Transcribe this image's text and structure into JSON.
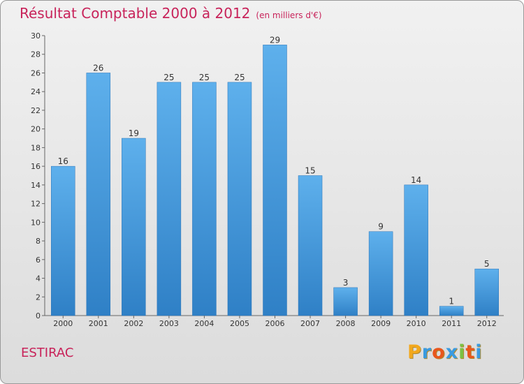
{
  "header": {
    "title": "Résultat Comptable 2000 à 2012",
    "subtitle": "(en milliers d'€)"
  },
  "footer": {
    "commune": "ESTIRAC",
    "brand": [
      "P",
      "r",
      "o",
      "x",
      "i",
      "t",
      "i"
    ],
    "brand_colors": [
      "#f2a81d",
      "#3a9be0",
      "#e8571c",
      "#3a9be0",
      "#7cc142",
      "#e8571c",
      "#3a9be0"
    ]
  },
  "chart_data": {
    "type": "bar",
    "title": "Résultat Comptable 2000 à 2012",
    "subtitle": "(en milliers d'€)",
    "categories": [
      "2000",
      "2001",
      "2002",
      "2003",
      "2004",
      "2005",
      "2006",
      "2007",
      "2008",
      "2009",
      "2010",
      "2011",
      "2012"
    ],
    "values": [
      16,
      26,
      19,
      25,
      25,
      25,
      29,
      15,
      3,
      9,
      14,
      1,
      5
    ],
    "xlabel": "",
    "ylabel": "",
    "ylim": [
      0,
      30
    ],
    "yticks": [
      0,
      2,
      4,
      6,
      8,
      10,
      12,
      14,
      16,
      18,
      20,
      22,
      24,
      26,
      28,
      30
    ],
    "grid": false,
    "bar_color": "#4a9fe0"
  }
}
